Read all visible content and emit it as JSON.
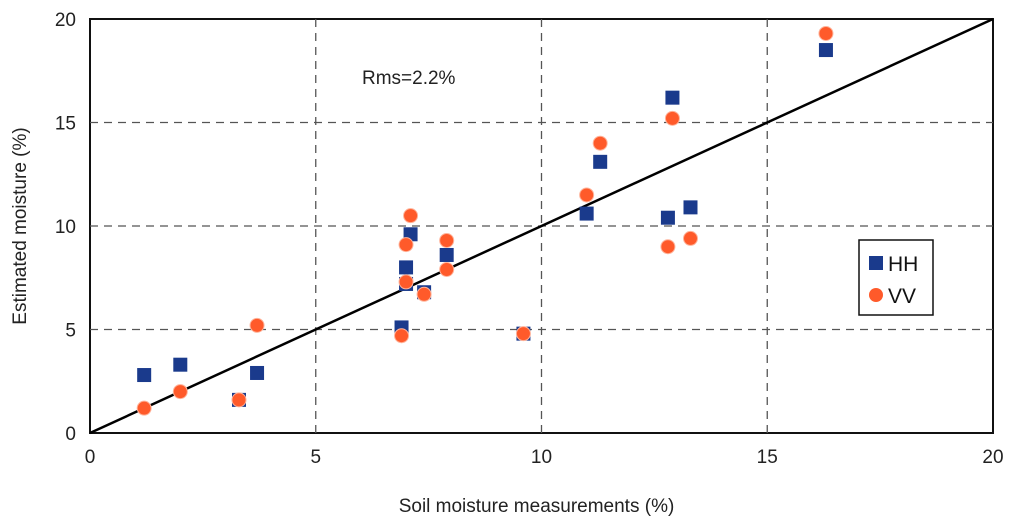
{
  "chart_data": {
    "type": "scatter",
    "xlabel": "Soil moisture measurements (%)",
    "ylabel": "Estimated moisture (%)",
    "xlim": [
      0,
      20
    ],
    "ylim": [
      0,
      20
    ],
    "xticks": [
      0,
      5,
      10,
      15,
      20
    ],
    "yticks": [
      0,
      5,
      10,
      15,
      20
    ],
    "grid": true,
    "legend_position": "right",
    "annotation": "Rms=2.2%",
    "reference_line": {
      "x": [
        0,
        20
      ],
      "y": [
        0,
        20
      ],
      "color": "#000000"
    },
    "series": [
      {
        "name": "HH",
        "marker": "square",
        "color": "#1a3a8c",
        "points": [
          [
            1.2,
            2.8
          ],
          [
            2.0,
            3.3
          ],
          [
            3.3,
            1.6
          ],
          [
            3.7,
            2.9
          ],
          [
            6.9,
            5.1
          ],
          [
            7.0,
            8.0
          ],
          [
            7.0,
            7.2
          ],
          [
            7.1,
            9.6
          ],
          [
            7.4,
            6.8
          ],
          [
            7.9,
            8.6
          ],
          [
            9.6,
            4.8
          ],
          [
            11.0,
            10.6
          ],
          [
            11.3,
            13.1
          ],
          [
            12.8,
            10.4
          ],
          [
            12.9,
            16.2
          ],
          [
            13.3,
            10.9
          ],
          [
            16.3,
            18.5
          ]
        ]
      },
      {
        "name": "VV",
        "marker": "circle",
        "color": "#ff5a2a",
        "points": [
          [
            1.2,
            1.2
          ],
          [
            2.0,
            2.0
          ],
          [
            3.3,
            1.6
          ],
          [
            3.7,
            5.2
          ],
          [
            6.9,
            4.7
          ],
          [
            7.0,
            9.1
          ],
          [
            7.0,
            7.3
          ],
          [
            7.1,
            10.5
          ],
          [
            7.4,
            6.7
          ],
          [
            7.9,
            9.3
          ],
          [
            7.9,
            7.9
          ],
          [
            9.6,
            4.8
          ],
          [
            11.0,
            11.5
          ],
          [
            11.3,
            14.0
          ],
          [
            12.8,
            9.0
          ],
          [
            12.9,
            15.2
          ],
          [
            13.3,
            9.4
          ],
          [
            16.3,
            19.3
          ]
        ]
      }
    ]
  }
}
